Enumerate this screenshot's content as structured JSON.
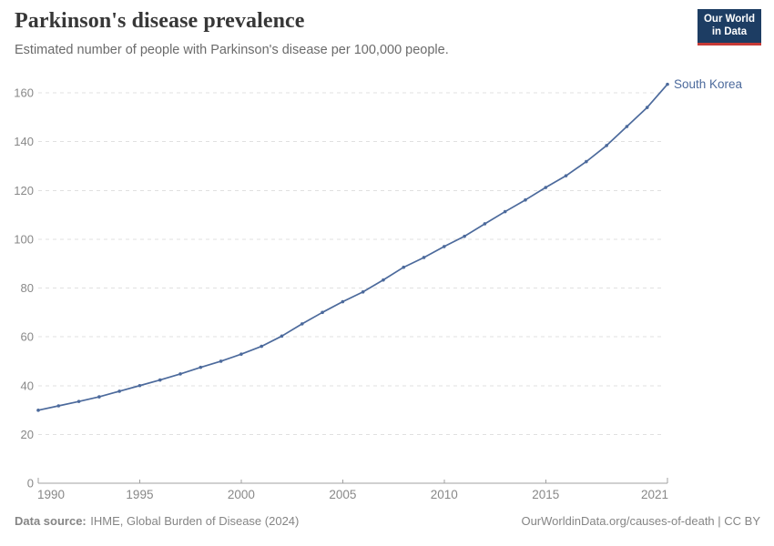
{
  "header": {
    "title": "Parkinson's disease prevalence",
    "subtitle": "Estimated number of people with Parkinson's disease per 100,000 people.",
    "logo": {
      "line1": "Our World",
      "line2": "in Data"
    }
  },
  "chart_data": {
    "type": "line",
    "title": "Parkinson's disease prevalence",
    "entity": "South Korea",
    "x": [
      1990,
      1991,
      1992,
      1993,
      1994,
      1995,
      1996,
      1997,
      1998,
      1999,
      2000,
      2001,
      2002,
      2003,
      2004,
      2005,
      2006,
      2007,
      2008,
      2009,
      2010,
      2011,
      2012,
      2013,
      2014,
      2015,
      2016,
      2017,
      2018,
      2019,
      2020,
      2021
    ],
    "series": [
      {
        "name": "South Korea",
        "values": [
          29.9,
          31.7,
          33.5,
          35.4,
          37.7,
          40.0,
          42.3,
          44.8,
          47.5,
          50.0,
          52.9,
          56.1,
          60.3,
          65.3,
          70.0,
          74.4,
          78.4,
          83.3,
          88.5,
          92.5,
          97.0,
          101.2,
          106.3,
          111.3,
          116.1,
          121.2,
          126.0,
          131.8,
          138.4,
          146.2,
          154.0,
          163.5
        ]
      }
    ],
    "xlabel": "",
    "ylabel": "",
    "ylim": [
      0,
      160
    ],
    "yticks": [
      0,
      20,
      40,
      60,
      80,
      100,
      120,
      140,
      160
    ],
    "xticks": [
      1990,
      1995,
      2000,
      2005,
      2010,
      2015,
      2021
    ],
    "grid": "horizontal-dashed",
    "legend_position": "end-of-line-label"
  },
  "footer": {
    "source_label": "Data source:",
    "source_text": "IHME, Global Burden of Disease (2024)",
    "credit": "OurWorldinData.org/causes-of-death | CC BY"
  },
  "colors": {
    "series": "#4C6A9C",
    "grid": "#e0e0e0",
    "axis": "#a0a0a0",
    "axis_text": "#888888",
    "logo_bg": "#1d3d63",
    "logo_stripe": "#c73a36"
  }
}
